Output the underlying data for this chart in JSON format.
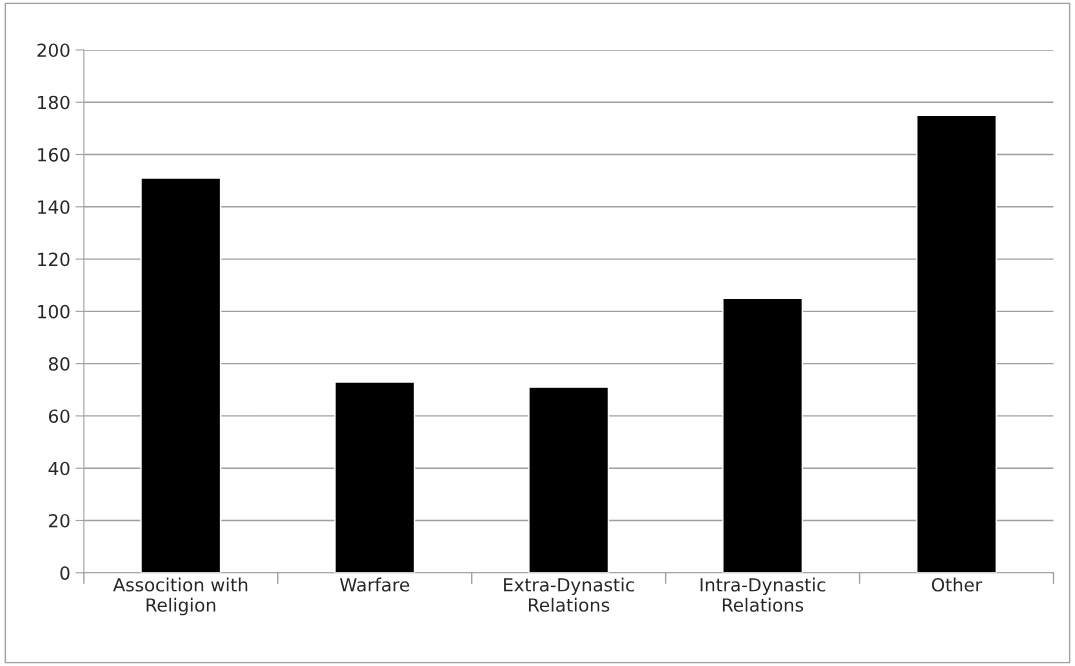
{
  "chart_data": {
    "type": "bar",
    "categories": [
      "Assocition with\nReligion",
      "Warfare",
      "Extra-Dynastic\nRelations",
      "Intra-Dynastic\nRelations",
      "Other"
    ],
    "values": [
      151,
      73,
      71,
      105,
      175
    ],
    "color": "#000000",
    "ylim": [
      0,
      200
    ],
    "yticks": [
      0,
      20,
      40,
      60,
      80,
      100,
      120,
      140,
      160,
      180,
      200
    ],
    "grid": "y",
    "legend": false
  }
}
